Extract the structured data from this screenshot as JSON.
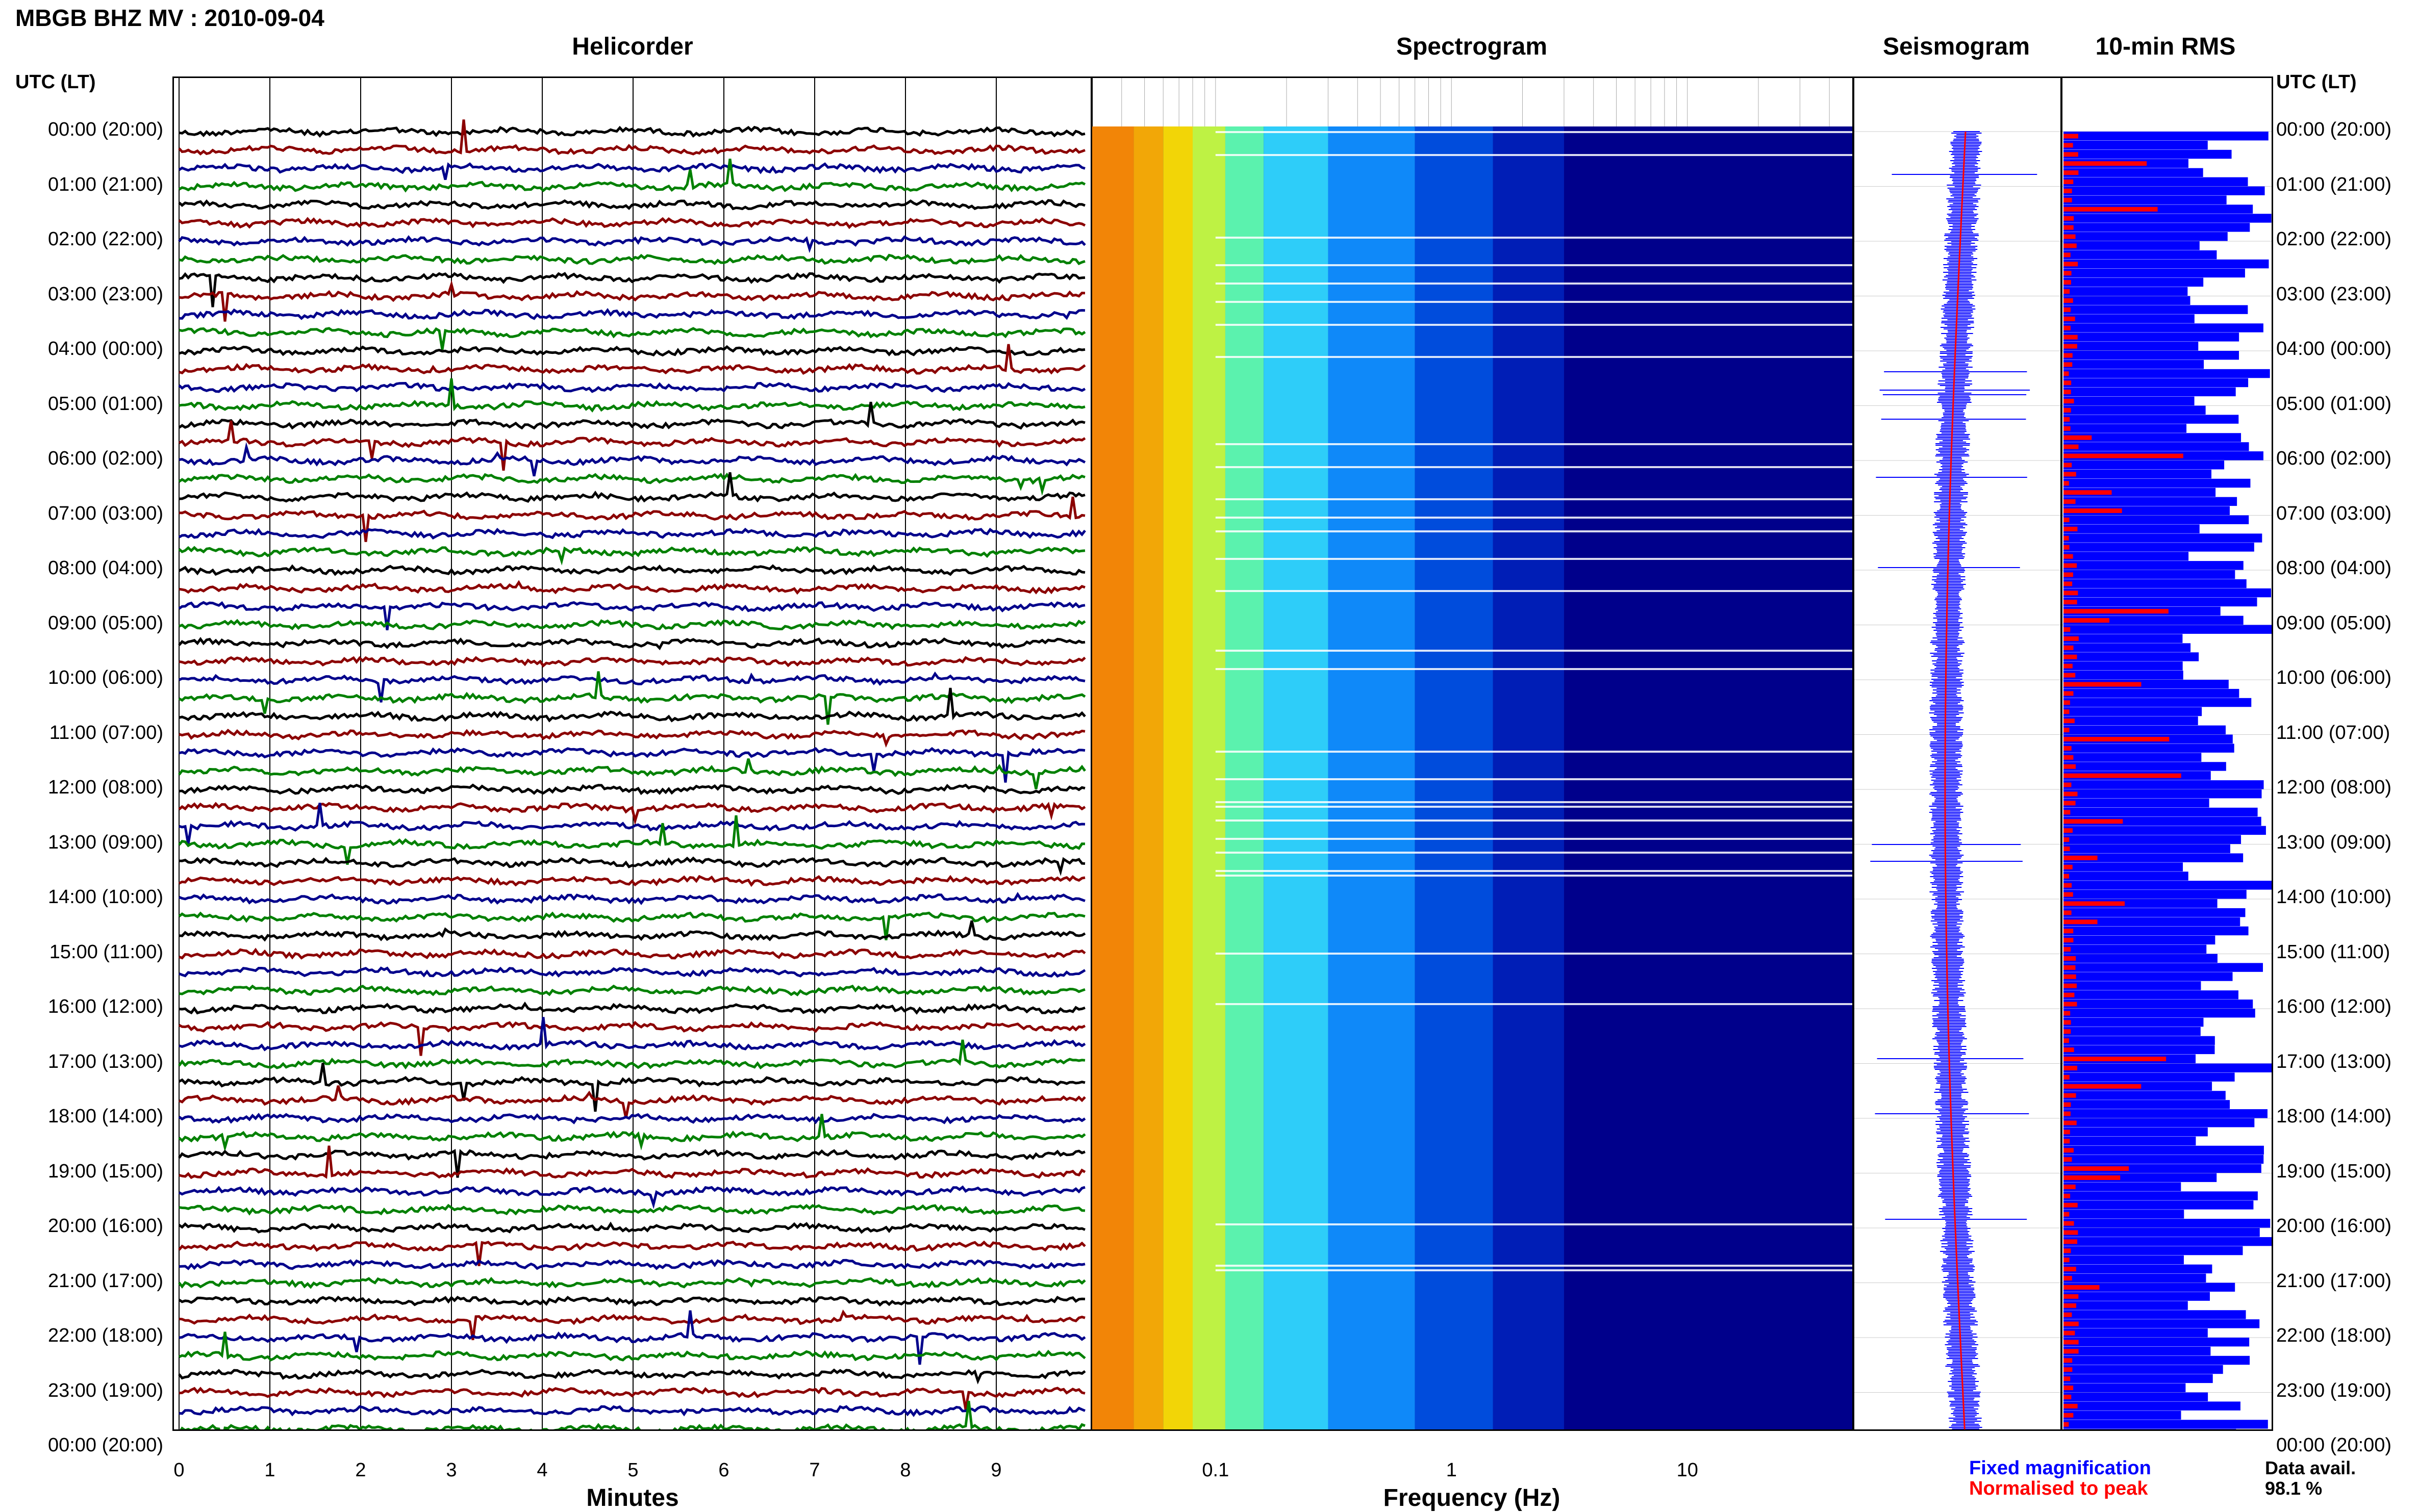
{
  "header": {
    "title": "MBGB BHZ MV : 2010-09-04",
    "utc_label_left": "UTC (LT)",
    "utc_label_right": "UTC (LT)"
  },
  "panels": {
    "helicorder": "Helicorder",
    "spectrogram": "Spectrogram",
    "seismogram": "Seismogram",
    "rms": "10-min RMS"
  },
  "time_labels": [
    "00:00 (20:00)",
    "01:00 (21:00)",
    "02:00 (22:00)",
    "03:00 (23:00)",
    "04:00 (00:00)",
    "05:00 (01:00)",
    "06:00 (02:00)",
    "07:00 (03:00)",
    "08:00 (04:00)",
    "09:00 (05:00)",
    "10:00 (06:00)",
    "11:00 (07:00)",
    "12:00 (08:00)",
    "13:00 (09:00)",
    "14:00 (10:00)",
    "15:00 (11:00)",
    "16:00 (12:00)",
    "17:00 (13:00)",
    "18:00 (14:00)",
    "19:00 (15:00)",
    "20:00 (16:00)",
    "21:00 (17:00)",
    "22:00 (18:00)",
    "23:00 (19:00)",
    "00:00 (20:00)"
  ],
  "helicorder_axis": {
    "ticks": [
      "0",
      "1",
      "2",
      "3",
      "4",
      "5",
      "6",
      "7",
      "8",
      "9"
    ],
    "label": "Minutes"
  },
  "spectrogram_axis": {
    "ticks": [
      "0.1",
      "1",
      "10"
    ],
    "label": "Frequency (Hz)"
  },
  "legend": {
    "fixed": "Fixed magnification",
    "normalised": "Normalised to peak",
    "avail_label": "Data avail.",
    "avail_value": "98.1 %"
  },
  "colors": {
    "trace_black": "#000000",
    "trace_red": "#8b0000",
    "trace_blue": "#00008b",
    "trace_green": "#008000",
    "fixed": "#0000ff",
    "normalised": "#ff0000",
    "spectro_bg": "#00008b"
  },
  "chart_data": [
    {
      "type": "line",
      "title": "Helicorder",
      "xlabel": "Minutes",
      "xlim": [
        0,
        10
      ],
      "rows": 72,
      "trace_colors": [
        "black",
        "darkred",
        "darkblue",
        "green"
      ]
    },
    {
      "type": "heatmap",
      "title": "Spectrogram",
      "xlabel": "Frequency (Hz)",
      "x_scale": "log",
      "xlim": [
        0.03,
        50
      ],
      "x_ticks": [
        0.1,
        1,
        10
      ]
    },
    {
      "type": "line",
      "title": "Seismogram",
      "series": [
        {
          "name": "Fixed magnification"
        },
        {
          "name": "Normalised to peak"
        }
      ]
    },
    {
      "type": "bar",
      "title": "10-min RMS",
      "series": [
        {
          "name": "Fixed magnification"
        },
        {
          "name": "Normalised to peak"
        }
      ]
    }
  ]
}
